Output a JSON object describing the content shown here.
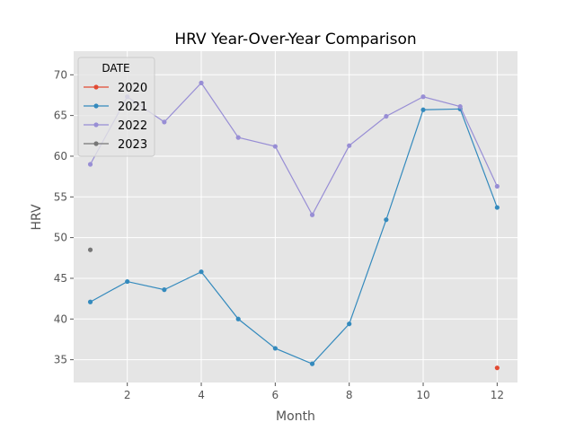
{
  "chart_data": {
    "type": "line",
    "title": "HRV Year-Over-Year Comparison",
    "xlabel": "Month",
    "ylabel": "HRV",
    "xlim": [
      0.55,
      12.55
    ],
    "ylim": [
      32.2,
      72.9
    ],
    "xticks": [
      2,
      4,
      6,
      8,
      10,
      12
    ],
    "yticks": [
      35,
      40,
      45,
      50,
      55,
      60,
      65,
      70
    ],
    "grid": true,
    "legend": {
      "title": "DATE",
      "placement": "top-left"
    },
    "series": [
      {
        "name": "2020",
        "color": "#E24A33",
        "points": [
          [
            12,
            34.0
          ]
        ]
      },
      {
        "name": "2021",
        "color": "#348ABD",
        "points": [
          [
            1,
            42.1
          ],
          [
            2,
            44.6
          ],
          [
            3,
            43.6
          ],
          [
            4,
            45.8
          ],
          [
            5,
            40.0
          ],
          [
            6,
            36.4
          ],
          [
            7,
            34.5
          ],
          [
            8,
            39.4
          ],
          [
            9,
            52.2
          ],
          [
            10,
            65.7
          ],
          [
            11,
            65.8
          ],
          [
            12,
            53.7
          ]
        ]
      },
      {
        "name": "2022",
        "color": "#988ED5",
        "points": [
          [
            1,
            59.0
          ],
          [
            2,
            67.3
          ],
          [
            3,
            64.2
          ],
          [
            4,
            69.0
          ],
          [
            5,
            62.3
          ],
          [
            6,
            61.2
          ],
          [
            7,
            52.8
          ],
          [
            8,
            61.3
          ],
          [
            9,
            64.9
          ],
          [
            10,
            67.3
          ],
          [
            11,
            66.1
          ],
          [
            12,
            56.3
          ]
        ]
      },
      {
        "name": "2023",
        "color": "#777777",
        "points": [
          [
            1,
            48.5
          ]
        ]
      }
    ]
  }
}
